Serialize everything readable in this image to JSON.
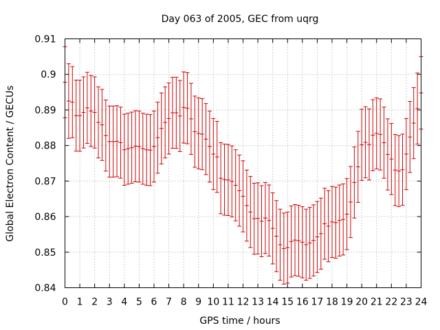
{
  "chart_data": {
    "type": "errorbar",
    "title": "Day 063 of 2005, GEC from uqrg",
    "xlabel": "GPS time / hours",
    "ylabel": "Global Electron Content / GECUs",
    "xlim": [
      0,
      24
    ],
    "ylim": [
      0.84,
      0.91
    ],
    "xticks": [
      0,
      1,
      2,
      3,
      4,
      5,
      6,
      7,
      8,
      9,
      10,
      11,
      12,
      13,
      14,
      15,
      16,
      17,
      18,
      19,
      20,
      21,
      22,
      23,
      24
    ],
    "yticks": [
      0.84,
      0.85,
      0.86,
      0.87,
      0.88,
      0.89,
      0.9,
      0.91
    ],
    "ytick_labels": [
      "0.84",
      "0.85",
      "0.86",
      "0.87",
      "0.88",
      "0.89",
      "0.9",
      "0.91"
    ],
    "grid": true,
    "series_color": "#cc0000",
    "x": [
      0,
      0.25,
      0.5,
      0.75,
      1,
      1.25,
      1.5,
      1.75,
      2,
      2.25,
      2.5,
      2.75,
      3,
      3.25,
      3.5,
      3.75,
      4,
      4.25,
      4.5,
      4.75,
      5,
      5.25,
      5.5,
      5.75,
      6,
      6.25,
      6.5,
      6.75,
      7,
      7.25,
      7.5,
      7.75,
      8,
      8.25,
      8.5,
      8.75,
      9,
      9.25,
      9.5,
      9.75,
      10,
      10.25,
      10.5,
      10.75,
      11,
      11.25,
      11.5,
      11.75,
      12,
      12.25,
      12.5,
      12.75,
      13,
      13.25,
      13.5,
      13.75,
      14,
      14.25,
      14.5,
      14.75,
      15,
      15.25,
      15.5,
      15.75,
      16,
      16.25,
      16.5,
      16.75,
      17,
      17.25,
      17.5,
      17.75,
      18,
      18.25,
      18.5,
      18.75,
      19,
      19.25,
      19.5,
      19.75,
      20,
      20.25,
      20.5,
      20.75,
      21,
      21.25,
      21.5,
      21.75,
      22,
      22.25,
      22.5,
      22.75,
      23,
      23.25,
      23.5,
      23.75,
      24
    ],
    "y": [
      0.8978,
      0.8925,
      0.8922,
      0.8884,
      0.8884,
      0.8893,
      0.8906,
      0.8897,
      0.8893,
      0.8865,
      0.8858,
      0.8828,
      0.8811,
      0.8811,
      0.8812,
      0.8808,
      0.8788,
      0.8791,
      0.8794,
      0.8798,
      0.8797,
      0.8791,
      0.8788,
      0.8787,
      0.8797,
      0.8822,
      0.8848,
      0.8865,
      0.8876,
      0.8892,
      0.8892,
      0.8883,
      0.8907,
      0.8905,
      0.8875,
      0.8839,
      0.8834,
      0.8832,
      0.8818,
      0.8797,
      0.8776,
      0.8768,
      0.8708,
      0.8704,
      0.8703,
      0.8699,
      0.8688,
      0.8673,
      0.8657,
      0.8631,
      0.8613,
      0.8594,
      0.8595,
      0.8587,
      0.8596,
      0.8589,
      0.8567,
      0.8545,
      0.8521,
      0.851,
      0.8513,
      0.853,
      0.8534,
      0.8532,
      0.8528,
      0.8521,
      0.8526,
      0.8533,
      0.8543,
      0.8552,
      0.858,
      0.8573,
      0.8585,
      0.8583,
      0.8589,
      0.8592,
      0.8607,
      0.8641,
      0.8696,
      0.874,
      0.8802,
      0.8809,
      0.8803,
      0.8829,
      0.8834,
      0.8831,
      0.8808,
      0.8775,
      0.8762,
      0.8731,
      0.8728,
      0.8732,
      0.8776,
      0.8824,
      0.8863,
      0.8904,
      0.8948
    ],
    "err": [
      0.01,
      0.0105,
      0.01,
      0.01,
      0.01,
      0.01,
      0.01,
      0.01,
      0.01,
      0.01,
      0.01,
      0.01,
      0.01,
      0.01,
      0.01,
      0.01,
      0.01,
      0.01,
      0.01,
      0.01,
      0.01,
      0.01,
      0.01,
      0.01,
      0.01,
      0.01,
      0.01,
      0.01,
      0.01,
      0.01,
      0.01,
      0.01,
      0.01,
      0.01,
      0.01,
      0.01,
      0.01,
      0.01,
      0.01,
      0.01,
      0.01,
      0.01,
      0.01,
      0.01,
      0.01,
      0.01,
      0.01,
      0.01,
      0.01,
      0.01,
      0.01,
      0.01,
      0.01,
      0.01,
      0.01,
      0.01,
      0.01,
      0.01,
      0.01,
      0.01,
      0.01,
      0.01,
      0.01,
      0.01,
      0.01,
      0.01,
      0.01,
      0.01,
      0.01,
      0.01,
      0.01,
      0.01,
      0.01,
      0.01,
      0.01,
      0.01,
      0.01,
      0.01,
      0.01,
      0.01,
      0.01,
      0.01,
      0.01,
      0.01,
      0.01,
      0.01,
      0.01,
      0.01,
      0.01,
      0.01,
      0.01,
      0.01,
      0.01,
      0.01,
      0.01,
      0.01,
      0.0102
    ]
  }
}
